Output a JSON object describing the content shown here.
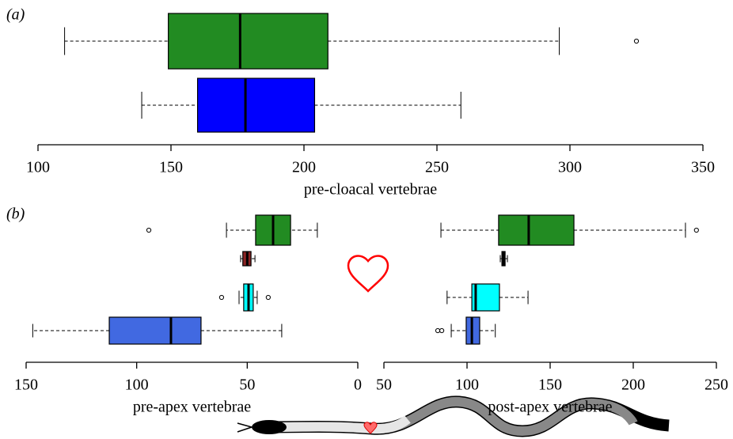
{
  "chart_data": [
    {
      "type": "box",
      "panel_label": "(a)",
      "xlabel": "pre-cloacal vertebrae",
      "xlim": [
        100,
        350
      ],
      "xticks": [
        100,
        150,
        200,
        250,
        300,
        350
      ],
      "boxes": [
        {
          "color": "#228b22",
          "whisker_low": 110,
          "q1": 149,
          "median": 176,
          "q3": 209,
          "whisker_high": 296,
          "outliers": [
            325
          ]
        },
        {
          "color": "#0000ff",
          "whisker_low": 139,
          "q1": 160,
          "median": 178,
          "q3": 204,
          "whisker_high": 259,
          "outliers": []
        }
      ]
    },
    {
      "type": "box",
      "panel_label": "(b)",
      "xlabel": "pre-apex vertebrae",
      "xlim": [
        150,
        0
      ],
      "xticks": [
        150,
        100,
        50,
        0
      ],
      "boxes": [
        {
          "color": "#228b22",
          "whisker_low": 18.3,
          "q1": 30.4,
          "median": 38.3,
          "q3": 46.2,
          "whisker_high": 59.4,
          "outliers": [
            94.5
          ]
        },
        {
          "color": "#8b2323",
          "whisker_low": 46.5,
          "q1": 48.3,
          "median": 50,
          "q3": 52,
          "whisker_high": 53,
          "outliers": []
        },
        {
          "color": "#00ffff",
          "whisker_low": 45.5,
          "q1": 47.3,
          "median": 49.4,
          "q3": 51.6,
          "whisker_high": 53.7,
          "outliers": [
            40.5,
            61.6
          ]
        },
        {
          "color": "#4169e1",
          "whisker_low": 34.4,
          "q1": 70.9,
          "median": 84.5,
          "q3": 112.4,
          "whisker_high": 147,
          "outliers": []
        }
      ]
    },
    {
      "type": "box",
      "xlabel": "post-apex vertebrae",
      "xlim": [
        50,
        250
      ],
      "xticks": [
        50,
        100,
        150,
        200,
        250
      ],
      "boxes": [
        {
          "color": "#228b22",
          "whisker_low": 84.3,
          "q1": 119,
          "median": 137.1,
          "q3": 164.3,
          "whisker_high": 231.4,
          "outliers": [
            238
          ]
        },
        {
          "color": "#8b2323",
          "whisker_low": 120,
          "q1": 121,
          "median": 121.9,
          "q3": 122.9,
          "whisker_high": 124.3,
          "outliers": []
        },
        {
          "color": "#00ffff",
          "whisker_low": 88,
          "q1": 102.9,
          "median": 105.2,
          "q3": 119.5,
          "whisker_high": 136.7,
          "outliers": []
        },
        {
          "color": "#4169e1",
          "whisker_low": 90.5,
          "q1": 99.5,
          "median": 102.9,
          "q3": 107.6,
          "whisker_high": 117,
          "outliers": [
            82.4,
            84.8
          ]
        }
      ]
    }
  ]
}
